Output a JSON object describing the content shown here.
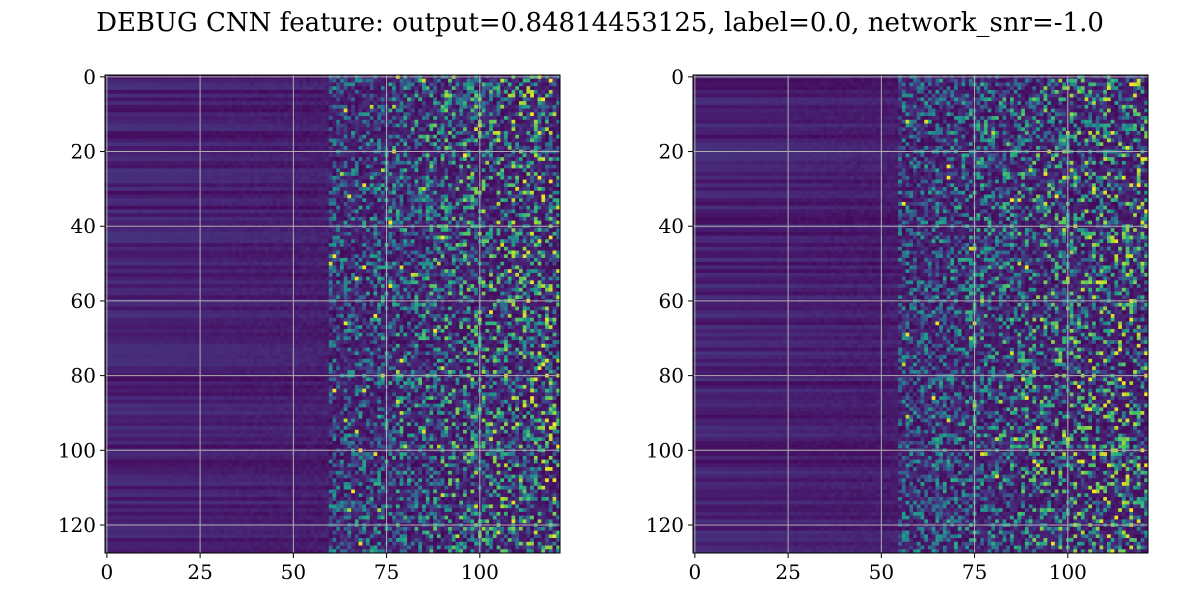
{
  "chart_data": {
    "title": "DEBUG CNN feature: output=0.84814453125, label=0.0, network_snr=-1.0",
    "panels": [
      {
        "type": "heatmap",
        "colormap": "viridis",
        "x_range": [
          -0.5,
          121.5
        ],
        "y_range": [
          127.5,
          -0.5
        ],
        "columns": 122,
        "rows": 128,
        "xticks": [
          0,
          25,
          50,
          75,
          100
        ],
        "yticks": [
          0,
          20,
          40,
          60,
          80,
          100,
          120
        ],
        "grid": true,
        "structure": "rows of low values in columns 0-40, noise increasing toward columns 75-121"
      },
      {
        "type": "heatmap",
        "colormap": "viridis",
        "x_range": [
          -0.5,
          121.5
        ],
        "y_range": [
          127.5,
          -0.5
        ],
        "columns": 122,
        "rows": 128,
        "xticks": [
          0,
          25,
          50,
          75,
          100
        ],
        "yticks": [
          0,
          20,
          40,
          60,
          80,
          100,
          120
        ],
        "grid": true,
        "structure": "rows of low values in columns 0-40, noise increasing toward columns 70-121"
      }
    ]
  }
}
